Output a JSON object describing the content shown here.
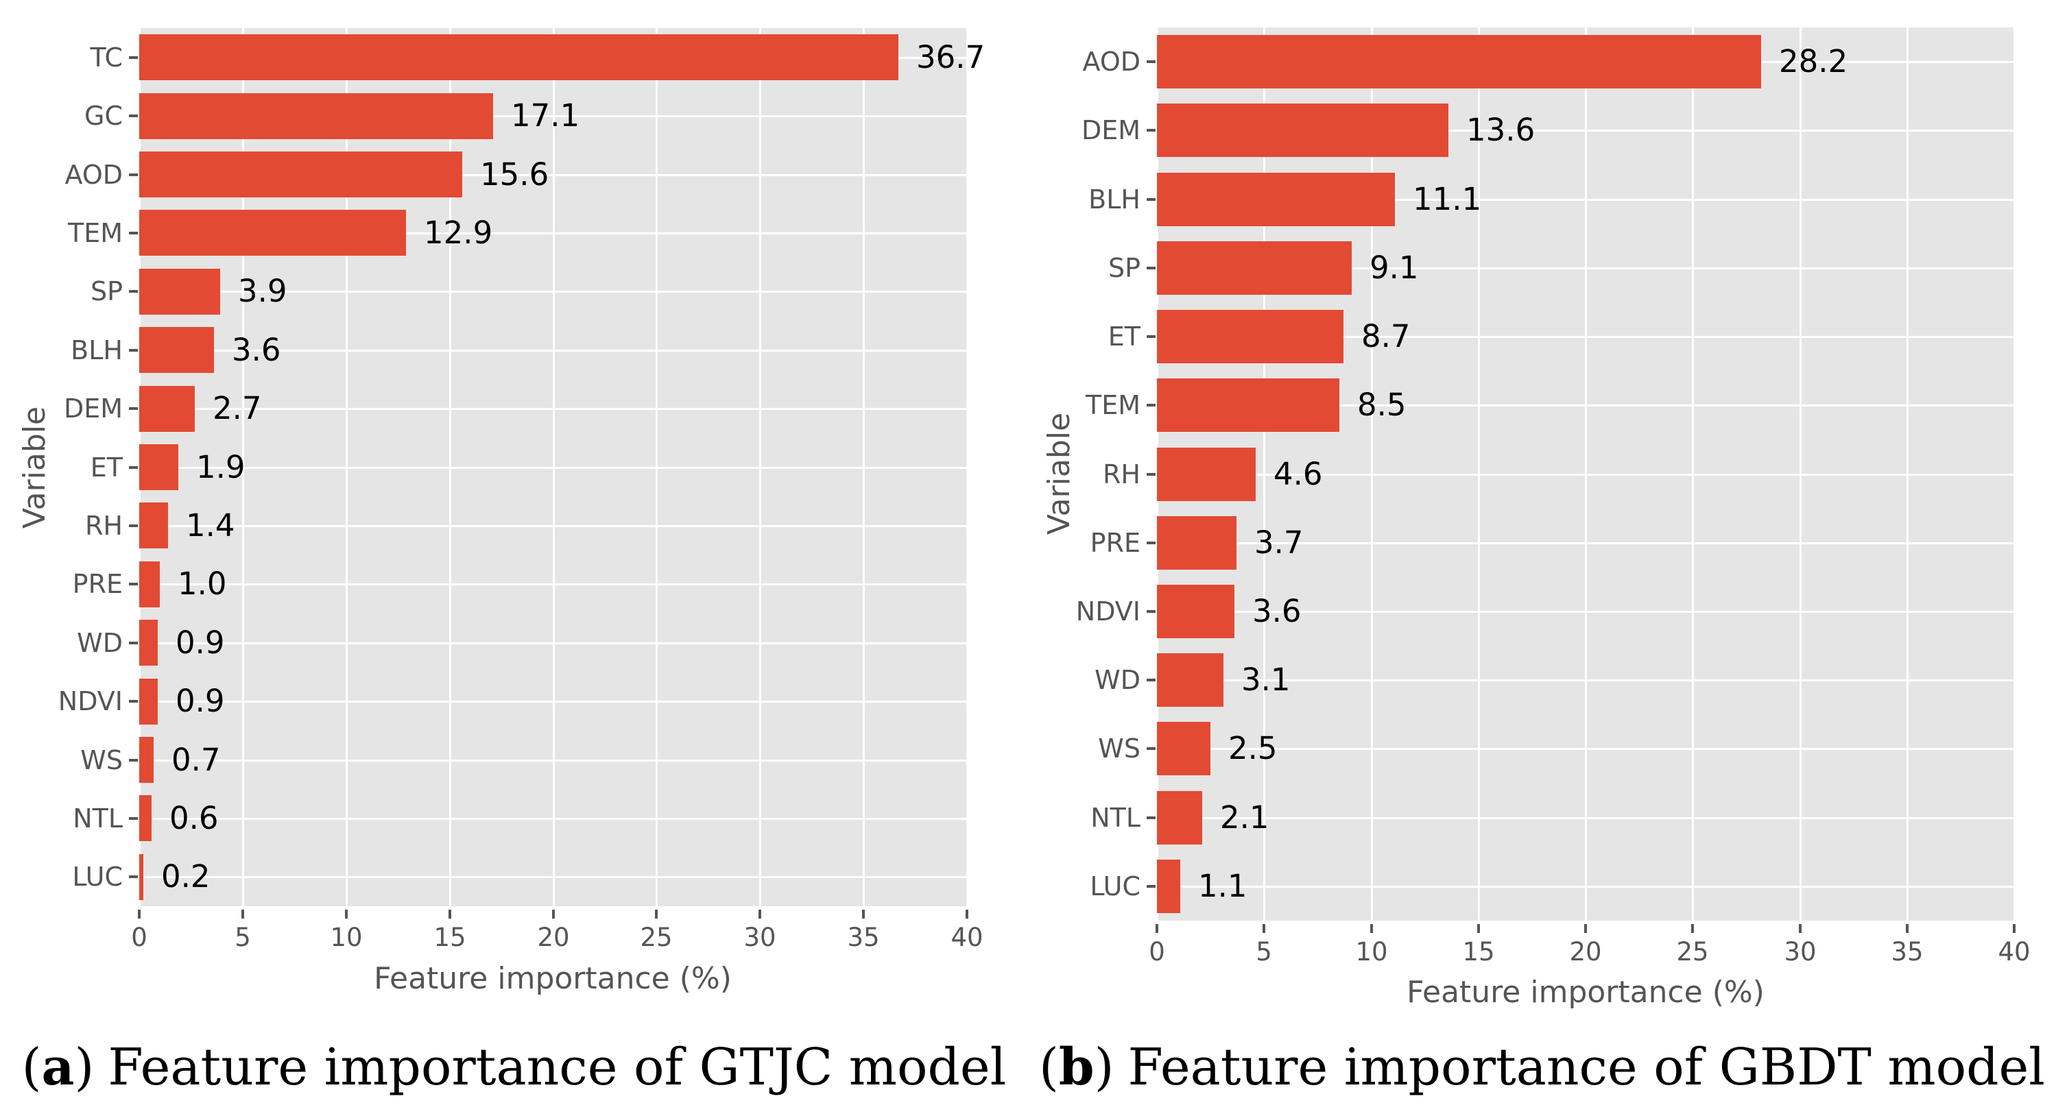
{
  "figure": {
    "background": "#ffffff",
    "panel_color": "#E5E5E5",
    "grid_color": "#ffffff",
    "tick_text_color": "#555555",
    "value_text_color": "#000000"
  },
  "chart_data": [
    {
      "type": "bar",
      "orientation": "horizontal",
      "categories": [
        "TC",
        "GC",
        "AOD",
        "TEM",
        "SP",
        "BLH",
        "DEM",
        "ET",
        "RH",
        "PRE",
        "WD",
        "NDVI",
        "WS",
        "NTL",
        "LUC"
      ],
      "values": [
        36.7,
        17.1,
        15.6,
        12.9,
        3.9,
        3.6,
        2.7,
        1.9,
        1.4,
        1.0,
        0.9,
        0.9,
        0.7,
        0.6,
        0.2
      ],
      "value_labels": [
        "36.7",
        "17.1",
        "15.6",
        "12.9",
        "3.9",
        "3.6",
        "2.7",
        "1.9",
        "1.4",
        "1.0",
        "0.9",
        "0.9",
        "0.7",
        "0.6",
        "0.2"
      ],
      "xlabel": "Feature importance (%)",
      "ylabel": "Variable",
      "xlim": [
        0,
        40
      ],
      "xticks": [
        0,
        5,
        10,
        15,
        20,
        25,
        30,
        35,
        40
      ],
      "xtick_labels": [
        "0",
        "5",
        "10",
        "15",
        "20",
        "25",
        "30",
        "35",
        "40"
      ],
      "grid": true,
      "legend": "none",
      "bar_color": "#E24A33",
      "caption": {
        "open": "(",
        "letter": "a",
        "close": ")",
        "text": "Feature importance of GTJC model"
      }
    },
    {
      "type": "bar",
      "orientation": "horizontal",
      "categories": [
        "AOD",
        "DEM",
        "BLH",
        "SP",
        "ET",
        "TEM",
        "RH",
        "PRE",
        "NDVI",
        "WD",
        "WS",
        "NTL",
        "LUC"
      ],
      "values": [
        28.2,
        13.6,
        11.1,
        9.1,
        8.7,
        8.5,
        4.6,
        3.7,
        3.6,
        3.1,
        2.5,
        2.1,
        1.1
      ],
      "value_labels": [
        "28.2",
        "13.6",
        "11.1",
        "9.1",
        "8.7",
        "8.5",
        "4.6",
        "3.7",
        "3.6",
        "3.1",
        "2.5",
        "2.1",
        "1.1"
      ],
      "xlabel": "Feature importance (%)",
      "ylabel": "Variable",
      "xlim": [
        0,
        40
      ],
      "xticks": [
        0,
        5,
        10,
        15,
        20,
        25,
        30,
        35,
        40
      ],
      "xtick_labels": [
        "0",
        "5",
        "10",
        "15",
        "20",
        "25",
        "30",
        "35",
        "40"
      ],
      "grid": true,
      "legend": "none",
      "bar_color": "#E24A33",
      "caption": {
        "open": "(",
        "letter": "b",
        "close": ")",
        "text": "Feature importance of GBDT model"
      }
    }
  ]
}
